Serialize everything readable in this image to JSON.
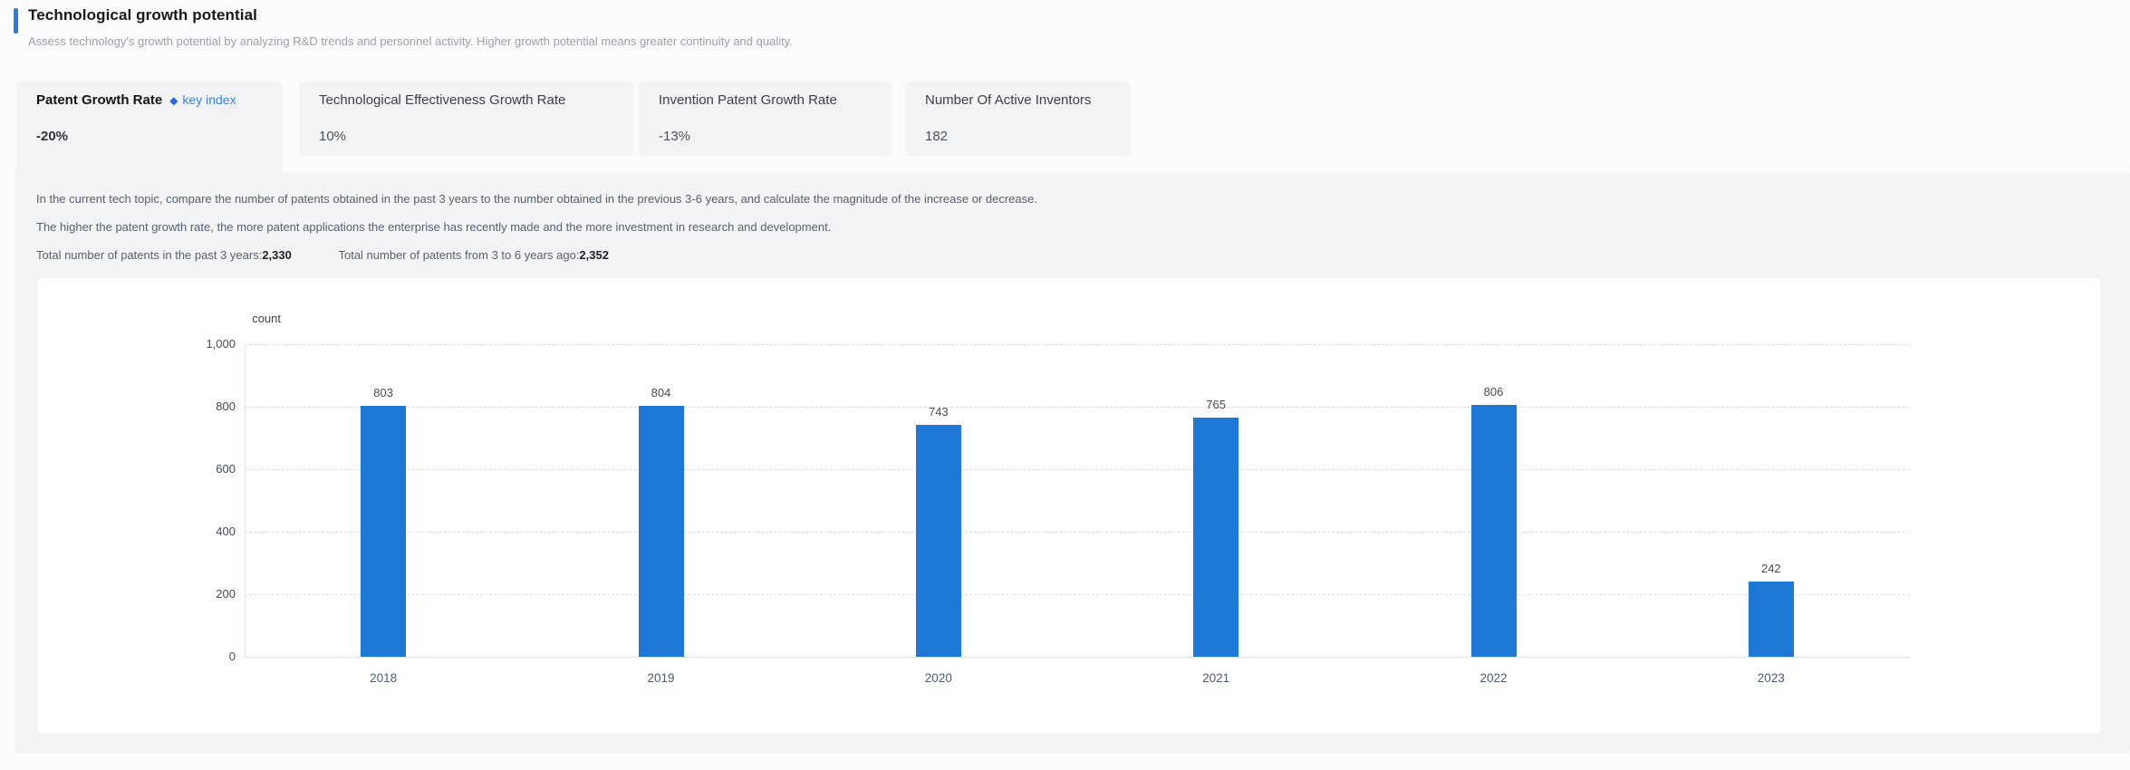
{
  "colors": {
    "page_bg": "#fafbfc",
    "panel_bg": "#f2f3f5",
    "card_bg": "#ffffff",
    "accent_blue": "#2b7be0",
    "bar_blue": "#1e78d6",
    "key_index_blue": "#3c80ea"
  },
  "header": {
    "title": "Technological growth potential",
    "subtitle": "Assess technology's growth potential by analyzing R&D trends and personnel activity. Higher growth potential means greater continuity and quality."
  },
  "tabs": [
    {
      "label": "Patent Growth Rate",
      "diamond": "◆",
      "key_index": "key index",
      "value": "-20%",
      "active": true
    },
    {
      "label": "Technological Effectiveness Growth Rate",
      "value": "10%",
      "active": false
    },
    {
      "label": "Invention Patent Growth Rate",
      "value": "-13%",
      "active": false
    },
    {
      "label": "Number Of Active Inventors",
      "value": "182",
      "active": false
    }
  ],
  "panel": {
    "description_lines": [
      "In the current tech topic, compare the number of patents obtained in the past 3 years to the number obtained in the previous 3-6 years, and calculate the magnitude of the increase or decrease.",
      "The higher the patent growth rate, the more patent applications the enterprise has recently made and the more investment in research and development."
    ],
    "totals": [
      {
        "label": "Total number of patents in the past 3 years:",
        "value": "2,330"
      },
      {
        "label": "Total number of patents from 3 to 6 years ago:",
        "value": "2,352"
      }
    ]
  },
  "chart_data": {
    "type": "bar",
    "title": "",
    "ylabel": "count",
    "xlabel": "",
    "categories": [
      "2018",
      "2019",
      "2020",
      "2021",
      "2022",
      "2023"
    ],
    "values": [
      803,
      804,
      743,
      765,
      806,
      242
    ],
    "ylim": [
      0,
      1000
    ],
    "yticks": [
      0,
      200,
      400,
      600,
      800,
      1000
    ],
    "ytick_labels": [
      "0",
      "200",
      "400",
      "600",
      "800",
      "1,000"
    ],
    "grid": "horizontal-dashed",
    "legend_position": "none",
    "bar_color": "#1e78d6"
  }
}
